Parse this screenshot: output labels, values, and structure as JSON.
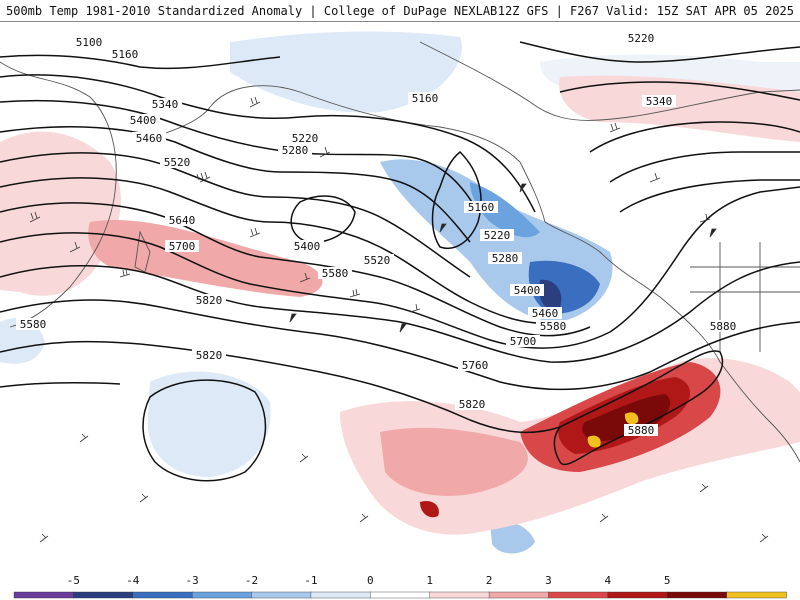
{
  "header": {
    "left_title": "500mb Temp 1981-2010 Standardized Anomaly | College of DuPage NEXLAB",
    "right_title": "12Z GFS | F267 Valid: 15Z SAT APR 05 2025"
  },
  "contour_labels": [
    "5100",
    "5160",
    "5340",
    "5400",
    "5460",
    "5520",
    "5220",
    "5280",
    "5160",
    "5220",
    "5340",
    "5160",
    "5220",
    "5280",
    "5400",
    "5460",
    "5520",
    "5580",
    "5580",
    "5640",
    "5700",
    "5700",
    "5760",
    "5820",
    "5820",
    "5820",
    "5880",
    "5880",
    "5400",
    "5580"
  ],
  "colorbar": {
    "ticks": [
      "-5",
      "-4",
      "-3",
      "-2",
      "-1",
      "0",
      "1",
      "2",
      "3",
      "4",
      "5"
    ],
    "colors": [
      "#6a3d9a",
      "#2b3f7e",
      "#3a6fbf",
      "#6aa3dd",
      "#a9c9ec",
      "#dde9f6",
      "#ffffff",
      "#f8d8d8",
      "#f0a8a8",
      "#d94848",
      "#b01818",
      "#7a0a0a",
      "#f0c020"
    ]
  }
}
